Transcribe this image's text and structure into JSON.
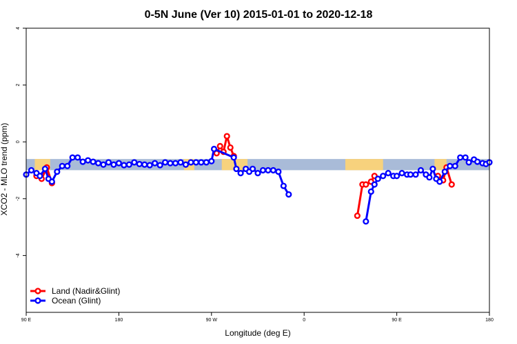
{
  "chart_data": {
    "type": "line",
    "title": "0-5N June (Ver 10)   2015-01-01 to 2020-12-18",
    "xlabel": "Longitude (deg E)",
    "ylabel": "XCO2 - MLO trend (ppm)",
    "xlim": [
      -90,
      180
    ],
    "ylim": [
      -6,
      4
    ],
    "x_ticks": [
      {
        "value": -90,
        "label": "90 E"
      },
      {
        "value": -36,
        "label": "180"
      },
      {
        "value": 18,
        "label": "90 W"
      },
      {
        "value": 72,
        "label": "0"
      },
      {
        "value": 126,
        "label": "90 E"
      },
      {
        "value": 180,
        "label": "180"
      }
    ],
    "y_ticks": [
      -4,
      -2,
      0,
      2,
      4
    ],
    "band": {
      "y_range": [
        -0.9,
        -0.7
      ],
      "ocean_color": "#a9bbd8",
      "land_color": "#f7d27d",
      "land_segments": [
        [
          -85,
          -76
        ],
        [
          2,
          8
        ],
        [
          24,
          39
        ],
        [
          96,
          118
        ],
        [
          148,
          155
        ]
      ]
    },
    "legend": {
      "position": "bottom-left"
    },
    "series": [
      {
        "name": "Land (Nadir&Glint)",
        "color": "#ff0000",
        "segments": [
          [
            [
              -84,
              -1.2
            ],
            [
              -81,
              -1.3
            ],
            [
              -78,
              -0.9
            ],
            [
              -75,
              -1.45
            ]
          ],
          [
            [
              21,
              -0.4
            ],
            [
              23,
              -0.15
            ],
            [
              25,
              -0.35
            ],
            [
              27,
              0.2
            ],
            [
              29,
              -0.2
            ],
            [
              31,
              -0.5
            ]
          ],
          [
            [
              103,
              -2.6
            ],
            [
              106,
              -1.5
            ],
            [
              108,
              -1.5
            ],
            [
              111,
              -1.4
            ],
            [
              113,
              -1.2
            ]
          ],
          [
            [
              150,
              -1.2
            ],
            [
              153,
              -1.35
            ],
            [
              155,
              -0.9
            ],
            [
              158,
              -1.5
            ]
          ]
        ]
      },
      {
        "name": "Ocean (Glint)",
        "color": "#0000ff",
        "segments": [
          [
            [
              -90,
              -1.15
            ],
            [
              -87,
              -1.0
            ],
            [
              -84,
              -1.1
            ],
            [
              -82,
              -1.2
            ],
            [
              -79,
              -0.95
            ],
            [
              -77,
              -1.3
            ],
            [
              -75,
              -1.4
            ],
            [
              -72,
              -1.05
            ],
            [
              -69,
              -0.85
            ],
            [
              -66,
              -0.85
            ],
            [
              -63,
              -0.55
            ],
            [
              -60,
              -0.55
            ],
            [
              -57,
              -0.7
            ],
            [
              -54,
              -0.65
            ],
            [
              -51,
              -0.7
            ],
            [
              -48,
              -0.75
            ],
            [
              -45,
              -0.8
            ],
            [
              -42,
              -0.72
            ],
            [
              -39,
              -0.8
            ],
            [
              -36,
              -0.75
            ],
            [
              -33,
              -0.82
            ],
            [
              -30,
              -0.8
            ],
            [
              -27,
              -0.72
            ],
            [
              -24,
              -0.78
            ],
            [
              -21,
              -0.8
            ],
            [
              -18,
              -0.82
            ],
            [
              -15,
              -0.75
            ],
            [
              -12,
              -0.82
            ],
            [
              -9,
              -0.72
            ],
            [
              -6,
              -0.75
            ],
            [
              -3,
              -0.75
            ],
            [
              0,
              -0.72
            ],
            [
              3,
              -0.8
            ],
            [
              6,
              -0.72
            ],
            [
              9,
              -0.72
            ],
            [
              12,
              -0.72
            ],
            [
              15,
              -0.72
            ],
            [
              18,
              -0.68
            ],
            [
              19.5,
              -0.25
            ],
            [
              31,
              -0.55
            ],
            [
              32.5,
              -0.95
            ],
            [
              35,
              -1.1
            ],
            [
              38,
              -0.95
            ],
            [
              40,
              -1.05
            ],
            [
              42,
              -0.95
            ],
            [
              45,
              -1.1
            ],
            [
              48,
              -1.0
            ],
            [
              51,
              -1.0
            ],
            [
              54,
              -1.0
            ],
            [
              57,
              -1.05
            ],
            [
              60,
              -1.55
            ],
            [
              63,
              -1.85
            ]
          ],
          [
            [
              108,
              -2.8
            ],
            [
              111,
              -1.75
            ],
            [
              113,
              -1.5
            ],
            [
              115,
              -1.3
            ],
            [
              118,
              -1.2
            ],
            [
              121,
              -1.1
            ],
            [
              124,
              -1.2
            ],
            [
              126,
              -1.2
            ],
            [
              129,
              -1.1
            ],
            [
              132,
              -1.15
            ],
            [
              134,
              -1.15
            ],
            [
              137,
              -1.15
            ],
            [
              140,
              -1.0
            ],
            [
              143,
              -1.15
            ],
            [
              145,
              -1.25
            ],
            [
              147,
              -0.95
            ],
            [
              149,
              -1.3
            ],
            [
              151,
              -1.4
            ],
            [
              154,
              -1.05
            ],
            [
              157,
              -0.85
            ],
            [
              160,
              -0.85
            ],
            [
              163,
              -0.55
            ],
            [
              166,
              -0.55
            ],
            [
              168,
              -0.72
            ],
            [
              171,
              -0.62
            ],
            [
              173,
              -0.7
            ],
            [
              176,
              -0.75
            ],
            [
              178,
              -0.78
            ],
            [
              180,
              -0.72
            ]
          ]
        ]
      }
    ]
  }
}
